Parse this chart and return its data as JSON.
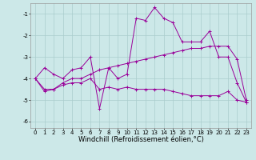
{
  "background_color": "#cce8e8",
  "grid_color": "#aacccc",
  "line_color": "#990099",
  "xlim": [
    -0.5,
    23.5
  ],
  "ylim": [
    -6.3,
    -0.5
  ],
  "xticks": [
    0,
    1,
    2,
    3,
    4,
    5,
    6,
    7,
    8,
    9,
    10,
    11,
    12,
    13,
    14,
    15,
    16,
    17,
    18,
    19,
    20,
    21,
    22,
    23
  ],
  "yticks": [
    -6,
    -5,
    -4,
    -3,
    -2,
    -1
  ],
  "xlabel": "Windchill (Refroidissement éolien,°C)",
  "line1_x": [
    0,
    1,
    2,
    3,
    4,
    5,
    6,
    7,
    8,
    9,
    10,
    11,
    12,
    13,
    14,
    15,
    16,
    17,
    18,
    19,
    20,
    21,
    22,
    23
  ],
  "line1_y": [
    -4.0,
    -3.5,
    -3.8,
    -4.0,
    -3.6,
    -3.5,
    -3.0,
    -5.4,
    -3.5,
    -4.0,
    -3.8,
    -1.2,
    -1.3,
    -0.7,
    -1.2,
    -1.4,
    -2.3,
    -2.3,
    -2.3,
    -1.8,
    -3.0,
    -3.0,
    -4.2,
    -5.1
  ],
  "line2_x": [
    0,
    1,
    2,
    3,
    4,
    5,
    6,
    7,
    8,
    9,
    10,
    11,
    12,
    13,
    14,
    15,
    16,
    17,
    18,
    19,
    20,
    21,
    22,
    23
  ],
  "line2_y": [
    -4.0,
    -4.5,
    -4.5,
    -4.2,
    -4.0,
    -4.0,
    -3.8,
    -3.6,
    -3.5,
    -3.4,
    -3.3,
    -3.2,
    -3.1,
    -3.0,
    -2.9,
    -2.8,
    -2.7,
    -2.6,
    -2.6,
    -2.5,
    -2.5,
    -2.5,
    -3.1,
    -5.0
  ],
  "line3_x": [
    0,
    1,
    2,
    3,
    4,
    5,
    6,
    7,
    8,
    9,
    10,
    11,
    12,
    13,
    14,
    15,
    16,
    17,
    18,
    19,
    20,
    21,
    22,
    23
  ],
  "line3_y": [
    -4.0,
    -4.6,
    -4.5,
    -4.3,
    -4.2,
    -4.2,
    -4.0,
    -4.5,
    -4.4,
    -4.5,
    -4.4,
    -4.5,
    -4.5,
    -4.5,
    -4.5,
    -4.6,
    -4.7,
    -4.8,
    -4.8,
    -4.8,
    -4.8,
    -4.6,
    -5.0,
    -5.1
  ],
  "tick_fontsize": 5.0,
  "axis_fontsize": 6.0
}
